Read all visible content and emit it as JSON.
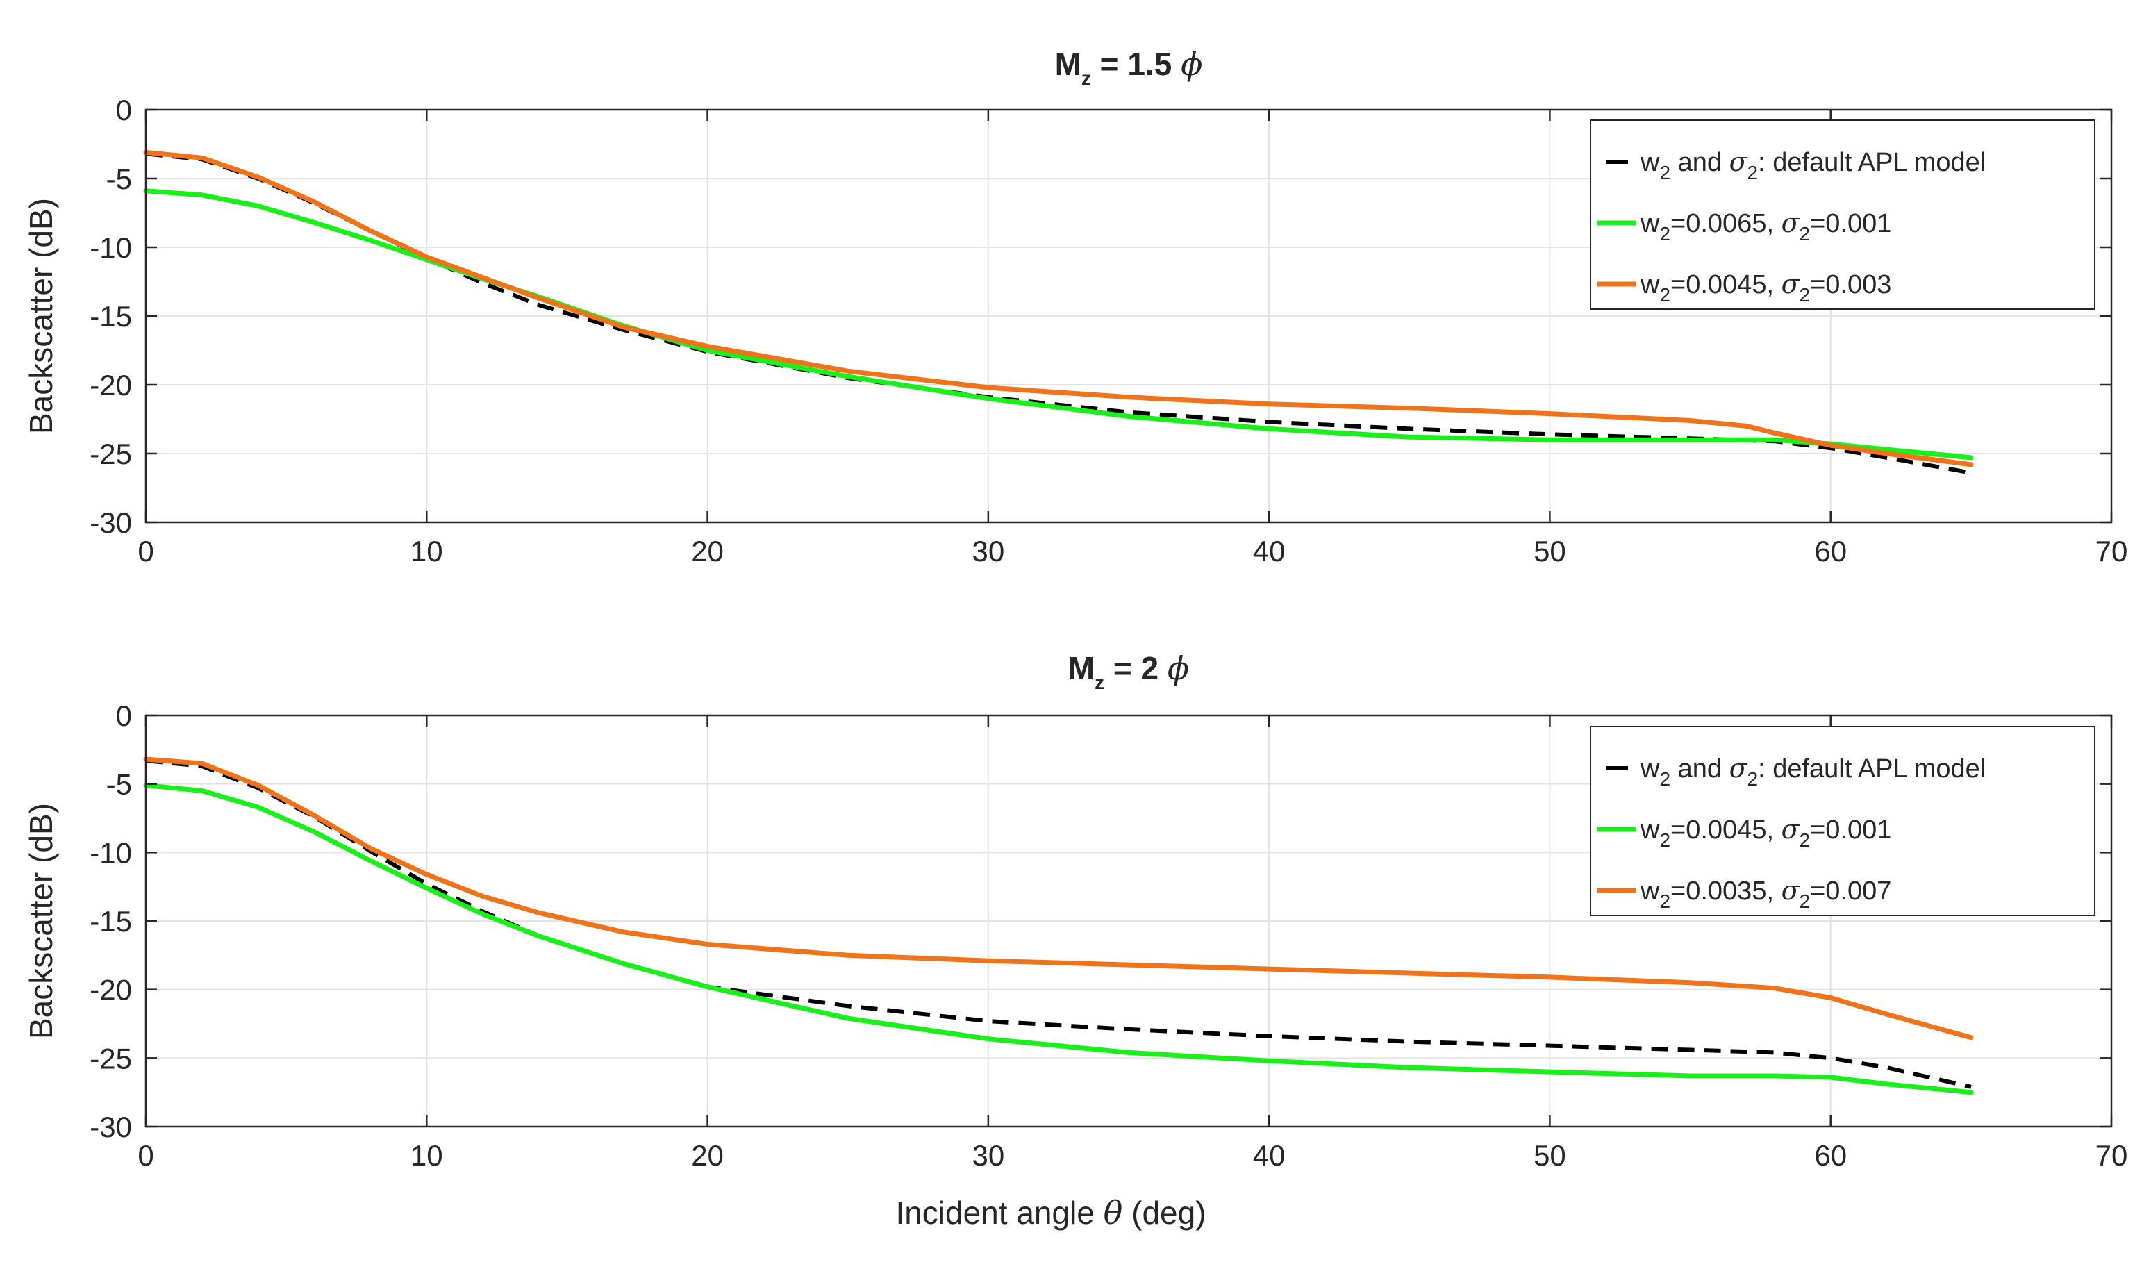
{
  "figure": {
    "xlabel_text": "Incident angle ",
    "xlabel_symbol": "θ",
    "xlabel_unit": " (deg)"
  },
  "chart_data": [
    {
      "type": "line",
      "title": {
        "prefix": "M",
        "sub": "z",
        "value": " = 1.5 ",
        "symbol": "ϕ"
      },
      "xlabel": "",
      "ylabel": "Backscatter (dB)",
      "xlim": [
        0,
        70
      ],
      "ylim": [
        -30,
        0
      ],
      "xticks": [
        0,
        10,
        20,
        30,
        40,
        50,
        60,
        70
      ],
      "yticks": [
        0,
        -5,
        -10,
        -15,
        -20,
        -25,
        -30
      ],
      "grid": true,
      "legend_position": "top-right",
      "colors": {
        "black": "#000000",
        "green": "#19f019",
        "orange": "#f07319"
      },
      "series": [
        {
          "name": "w2 and σ2: default APL model",
          "legend": {
            "a": "w",
            "a_sub": "2",
            "b": " and ",
            "sym": "σ",
            "sym_sub": "2",
            "c": ": default APL model"
          },
          "color": "black",
          "style": "dashed",
          "x": [
            0,
            2,
            4,
            6,
            8,
            10,
            12,
            14,
            17,
            20,
            25,
            30,
            35,
            40,
            45,
            50,
            55,
            58,
            60,
            62,
            65
          ],
          "y": [
            -3.2,
            -3.6,
            -5.0,
            -6.8,
            -8.8,
            -10.8,
            -12.6,
            -14.2,
            -16.0,
            -17.6,
            -19.5,
            -20.9,
            -22.0,
            -22.7,
            -23.2,
            -23.6,
            -23.9,
            -24.1,
            -24.6,
            -25.3,
            -26.4
          ]
        },
        {
          "name": "w2=0.0065, σ2=0.001",
          "legend": {
            "a": "w",
            "a_sub": "2",
            "b": "=0.0065, ",
            "sym": "σ",
            "sym_sub": "2",
            "c": "=0.001"
          },
          "color": "green",
          "style": "solid",
          "x": [
            0,
            2,
            4,
            6,
            8,
            10,
            12,
            14,
            17,
            20,
            25,
            30,
            35,
            40,
            45,
            50,
            55,
            58,
            60,
            62,
            65
          ],
          "y": [
            -5.9,
            -6.2,
            -7.0,
            -8.2,
            -9.5,
            -10.9,
            -12.3,
            -13.6,
            -15.7,
            -17.5,
            -19.4,
            -21.0,
            -22.3,
            -23.2,
            -23.8,
            -24.0,
            -24.0,
            -24.0,
            -24.3,
            -24.7,
            -25.3
          ]
        },
        {
          "name": "w2=0.0045, σ2=0.003",
          "legend": {
            "a": "w",
            "a_sub": "2",
            "b": "=0.0045, ",
            "sym": "σ",
            "sym_sub": "2",
            "c": "=0.003"
          },
          "color": "orange",
          "style": "solid",
          "x": [
            0,
            2,
            4,
            6,
            8,
            10,
            12,
            14,
            17,
            20,
            25,
            30,
            35,
            40,
            45,
            50,
            55,
            57,
            58,
            60,
            62,
            65
          ],
          "y": [
            -3.1,
            -3.5,
            -4.9,
            -6.7,
            -8.8,
            -10.7,
            -12.2,
            -13.7,
            -15.8,
            -17.2,
            -19.0,
            -20.2,
            -20.9,
            -21.4,
            -21.7,
            -22.1,
            -22.6,
            -23.0,
            -23.5,
            -24.4,
            -25.0,
            -25.8
          ]
        }
      ]
    },
    {
      "type": "line",
      "title": {
        "prefix": "M",
        "sub": "z",
        "value": " = 2 ",
        "symbol": "ϕ"
      },
      "xlabel": "Incident angle θ (deg)",
      "ylabel": "Backscatter (dB)",
      "xlim": [
        0,
        70
      ],
      "ylim": [
        -30,
        0
      ],
      "xticks": [
        0,
        10,
        20,
        30,
        40,
        50,
        60,
        70
      ],
      "yticks": [
        0,
        -5,
        -10,
        -15,
        -20,
        -25,
        -30
      ],
      "grid": true,
      "legend_position": "top-right",
      "colors": {
        "black": "#000000",
        "green": "#19f019",
        "orange": "#f07319"
      },
      "series": [
        {
          "name": "w2 and σ2: default APL model",
          "legend": {
            "a": "w",
            "a_sub": "2",
            "b": " and ",
            "sym": "σ",
            "sym_sub": "2",
            "c": ": default APL model"
          },
          "color": "black",
          "style": "dashed",
          "x": [
            0,
            2,
            4,
            6,
            8,
            10,
            12,
            14,
            17,
            20,
            25,
            30,
            35,
            40,
            45,
            50,
            55,
            58,
            60,
            62,
            65
          ],
          "y": [
            -3.3,
            -3.7,
            -5.3,
            -7.4,
            -9.9,
            -12.3,
            -14.3,
            -16.1,
            -18.1,
            -19.8,
            -21.2,
            -22.3,
            -22.9,
            -23.4,
            -23.8,
            -24.1,
            -24.4,
            -24.6,
            -25.0,
            -25.7,
            -27.1
          ]
        },
        {
          "name": "w2=0.0045, σ2=0.001",
          "legend": {
            "a": "w",
            "a_sub": "2",
            "b": "=0.0045, ",
            "sym": "σ",
            "sym_sub": "2",
            "c": "=0.001"
          },
          "color": "green",
          "style": "solid",
          "x": [
            0,
            2,
            4,
            6,
            8,
            10,
            12,
            14,
            17,
            20,
            25,
            30,
            35,
            40,
            45,
            50,
            55,
            58,
            60,
            62,
            65
          ],
          "y": [
            -5.1,
            -5.5,
            -6.7,
            -8.5,
            -10.6,
            -12.6,
            -14.5,
            -16.1,
            -18.1,
            -19.8,
            -22.1,
            -23.6,
            -24.6,
            -25.2,
            -25.7,
            -26.0,
            -26.3,
            -26.3,
            -26.4,
            -26.9,
            -27.5
          ]
        },
        {
          "name": "w2=0.0035, σ2=0.007",
          "legend": {
            "a": "w",
            "a_sub": "2",
            "b": "=0.0035, ",
            "sym": "σ",
            "sym_sub": "2",
            "c": "=0.007"
          },
          "color": "orange",
          "style": "solid",
          "x": [
            0,
            2,
            4,
            6,
            8,
            10,
            12,
            14,
            17,
            20,
            25,
            30,
            35,
            40,
            45,
            50,
            55,
            58,
            60,
            62,
            65
          ],
          "y": [
            -3.2,
            -3.5,
            -5.1,
            -7.3,
            -9.7,
            -11.6,
            -13.2,
            -14.4,
            -15.8,
            -16.7,
            -17.5,
            -17.9,
            -18.2,
            -18.5,
            -18.8,
            -19.1,
            -19.5,
            -19.9,
            -20.6,
            -21.8,
            -23.5
          ]
        }
      ]
    }
  ]
}
